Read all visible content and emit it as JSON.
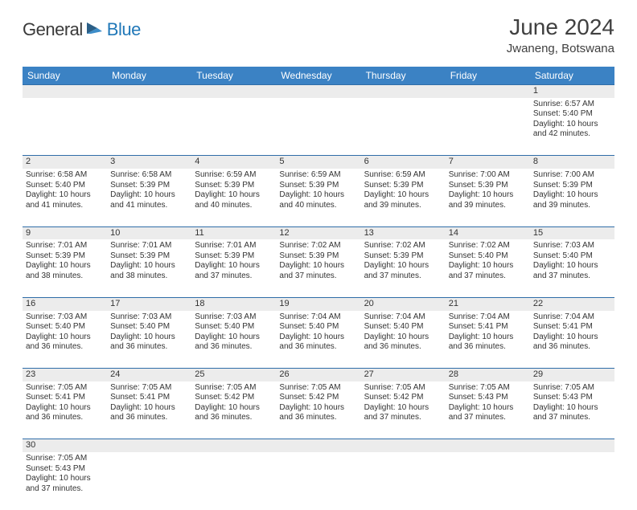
{
  "brand": {
    "text1": "General",
    "text2": "Blue"
  },
  "title": "June 2024",
  "location": "Jwaneng, Botswana",
  "colors": {
    "header_bg": "#3b82c4",
    "header_text": "#ffffff",
    "daynum_bg": "#ececec",
    "border": "#2f6da8",
    "logo_gray": "#3a3a3a",
    "logo_blue": "#2178b8"
  },
  "weekdays": [
    "Sunday",
    "Monday",
    "Tuesday",
    "Wednesday",
    "Thursday",
    "Friday",
    "Saturday"
  ],
  "weeks": [
    {
      "nums": [
        "",
        "",
        "",
        "",
        "",
        "",
        "1"
      ],
      "cells": [
        null,
        null,
        null,
        null,
        null,
        null,
        {
          "sunrise": "Sunrise: 6:57 AM",
          "sunset": "Sunset: 5:40 PM",
          "day1": "Daylight: 10 hours",
          "day2": "and 42 minutes."
        }
      ]
    },
    {
      "nums": [
        "2",
        "3",
        "4",
        "5",
        "6",
        "7",
        "8"
      ],
      "cells": [
        {
          "sunrise": "Sunrise: 6:58 AM",
          "sunset": "Sunset: 5:40 PM",
          "day1": "Daylight: 10 hours",
          "day2": "and 41 minutes."
        },
        {
          "sunrise": "Sunrise: 6:58 AM",
          "sunset": "Sunset: 5:39 PM",
          "day1": "Daylight: 10 hours",
          "day2": "and 41 minutes."
        },
        {
          "sunrise": "Sunrise: 6:59 AM",
          "sunset": "Sunset: 5:39 PM",
          "day1": "Daylight: 10 hours",
          "day2": "and 40 minutes."
        },
        {
          "sunrise": "Sunrise: 6:59 AM",
          "sunset": "Sunset: 5:39 PM",
          "day1": "Daylight: 10 hours",
          "day2": "and 40 minutes."
        },
        {
          "sunrise": "Sunrise: 6:59 AM",
          "sunset": "Sunset: 5:39 PM",
          "day1": "Daylight: 10 hours",
          "day2": "and 39 minutes."
        },
        {
          "sunrise": "Sunrise: 7:00 AM",
          "sunset": "Sunset: 5:39 PM",
          "day1": "Daylight: 10 hours",
          "day2": "and 39 minutes."
        },
        {
          "sunrise": "Sunrise: 7:00 AM",
          "sunset": "Sunset: 5:39 PM",
          "day1": "Daylight: 10 hours",
          "day2": "and 39 minutes."
        }
      ]
    },
    {
      "nums": [
        "9",
        "10",
        "11",
        "12",
        "13",
        "14",
        "15"
      ],
      "cells": [
        {
          "sunrise": "Sunrise: 7:01 AM",
          "sunset": "Sunset: 5:39 PM",
          "day1": "Daylight: 10 hours",
          "day2": "and 38 minutes."
        },
        {
          "sunrise": "Sunrise: 7:01 AM",
          "sunset": "Sunset: 5:39 PM",
          "day1": "Daylight: 10 hours",
          "day2": "and 38 minutes."
        },
        {
          "sunrise": "Sunrise: 7:01 AM",
          "sunset": "Sunset: 5:39 PM",
          "day1": "Daylight: 10 hours",
          "day2": "and 37 minutes."
        },
        {
          "sunrise": "Sunrise: 7:02 AM",
          "sunset": "Sunset: 5:39 PM",
          "day1": "Daylight: 10 hours",
          "day2": "and 37 minutes."
        },
        {
          "sunrise": "Sunrise: 7:02 AM",
          "sunset": "Sunset: 5:39 PM",
          "day1": "Daylight: 10 hours",
          "day2": "and 37 minutes."
        },
        {
          "sunrise": "Sunrise: 7:02 AM",
          "sunset": "Sunset: 5:40 PM",
          "day1": "Daylight: 10 hours",
          "day2": "and 37 minutes."
        },
        {
          "sunrise": "Sunrise: 7:03 AM",
          "sunset": "Sunset: 5:40 PM",
          "day1": "Daylight: 10 hours",
          "day2": "and 37 minutes."
        }
      ]
    },
    {
      "nums": [
        "16",
        "17",
        "18",
        "19",
        "20",
        "21",
        "22"
      ],
      "cells": [
        {
          "sunrise": "Sunrise: 7:03 AM",
          "sunset": "Sunset: 5:40 PM",
          "day1": "Daylight: 10 hours",
          "day2": "and 36 minutes."
        },
        {
          "sunrise": "Sunrise: 7:03 AM",
          "sunset": "Sunset: 5:40 PM",
          "day1": "Daylight: 10 hours",
          "day2": "and 36 minutes."
        },
        {
          "sunrise": "Sunrise: 7:03 AM",
          "sunset": "Sunset: 5:40 PM",
          "day1": "Daylight: 10 hours",
          "day2": "and 36 minutes."
        },
        {
          "sunrise": "Sunrise: 7:04 AM",
          "sunset": "Sunset: 5:40 PM",
          "day1": "Daylight: 10 hours",
          "day2": "and 36 minutes."
        },
        {
          "sunrise": "Sunrise: 7:04 AM",
          "sunset": "Sunset: 5:40 PM",
          "day1": "Daylight: 10 hours",
          "day2": "and 36 minutes."
        },
        {
          "sunrise": "Sunrise: 7:04 AM",
          "sunset": "Sunset: 5:41 PM",
          "day1": "Daylight: 10 hours",
          "day2": "and 36 minutes."
        },
        {
          "sunrise": "Sunrise: 7:04 AM",
          "sunset": "Sunset: 5:41 PM",
          "day1": "Daylight: 10 hours",
          "day2": "and 36 minutes."
        }
      ]
    },
    {
      "nums": [
        "23",
        "24",
        "25",
        "26",
        "27",
        "28",
        "29"
      ],
      "cells": [
        {
          "sunrise": "Sunrise: 7:05 AM",
          "sunset": "Sunset: 5:41 PM",
          "day1": "Daylight: 10 hours",
          "day2": "and 36 minutes."
        },
        {
          "sunrise": "Sunrise: 7:05 AM",
          "sunset": "Sunset: 5:41 PM",
          "day1": "Daylight: 10 hours",
          "day2": "and 36 minutes."
        },
        {
          "sunrise": "Sunrise: 7:05 AM",
          "sunset": "Sunset: 5:42 PM",
          "day1": "Daylight: 10 hours",
          "day2": "and 36 minutes."
        },
        {
          "sunrise": "Sunrise: 7:05 AM",
          "sunset": "Sunset: 5:42 PM",
          "day1": "Daylight: 10 hours",
          "day2": "and 36 minutes."
        },
        {
          "sunrise": "Sunrise: 7:05 AM",
          "sunset": "Sunset: 5:42 PM",
          "day1": "Daylight: 10 hours",
          "day2": "and 37 minutes."
        },
        {
          "sunrise": "Sunrise: 7:05 AM",
          "sunset": "Sunset: 5:43 PM",
          "day1": "Daylight: 10 hours",
          "day2": "and 37 minutes."
        },
        {
          "sunrise": "Sunrise: 7:05 AM",
          "sunset": "Sunset: 5:43 PM",
          "day1": "Daylight: 10 hours",
          "day2": "and 37 minutes."
        }
      ]
    },
    {
      "nums": [
        "30",
        "",
        "",
        "",
        "",
        "",
        ""
      ],
      "cells": [
        {
          "sunrise": "Sunrise: 7:05 AM",
          "sunset": "Sunset: 5:43 PM",
          "day1": "Daylight: 10 hours",
          "day2": "and 37 minutes."
        },
        null,
        null,
        null,
        null,
        null,
        null
      ]
    }
  ]
}
